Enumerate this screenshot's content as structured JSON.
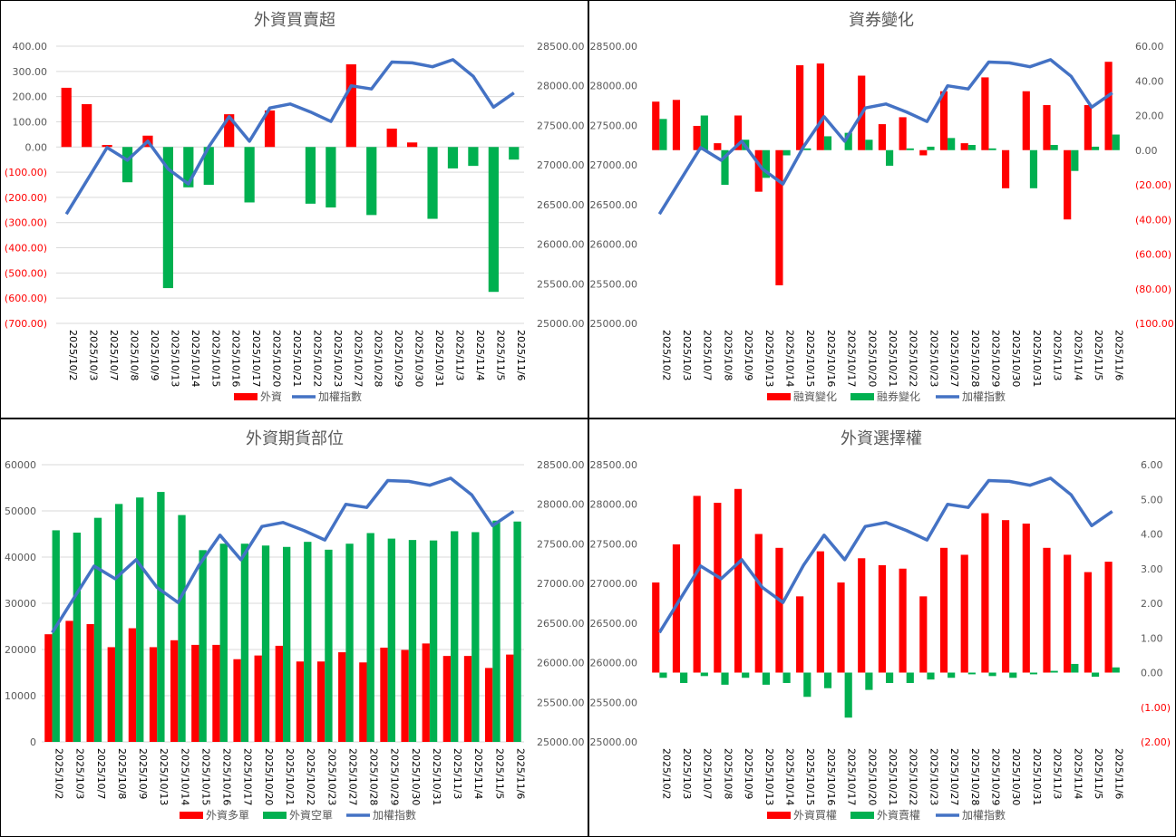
{
  "colors": {
    "red": "#ff0000",
    "green": "#00b050",
    "blue": "#4472c4",
    "grid": "#d9d9d9",
    "axis_text": "#595959",
    "negative_text": "#ff0000",
    "title_text": "#595959"
  },
  "dates": [
    "2025/10/2",
    "2025/10/3",
    "2025/10/7",
    "2025/10/8",
    "2025/10/9",
    "2025/10/13",
    "2025/10/14",
    "2025/10/15",
    "2025/10/16",
    "2025/10/17",
    "2025/10/20",
    "2025/10/21",
    "2025/10/22",
    "2025/10/23",
    "2025/10/27",
    "2025/10/28",
    "2025/10/29",
    "2025/10/30",
    "2025/10/31",
    "2025/11/3",
    "2025/11/4",
    "2025/11/5",
    "2025/11/6"
  ],
  "chart_data": [
    {
      "id": "foreign-net",
      "type": "bar",
      "title": "外資買賣超",
      "legend": "bottom",
      "grid": true,
      "left_axis": {
        "min": -700,
        "max": 400,
        "step": 100,
        "ticks": [
          "(700.00)",
          "(600.00)",
          "(500.00)",
          "(400.00)",
          "(300.00)",
          "(200.00)",
          "(100.00)",
          "0.00",
          "100.00",
          "200.00",
          "300.00",
          "400.00"
        ]
      },
      "right_axis": {
        "min": 25000,
        "max": 28500,
        "step": 500,
        "ticks": [
          "25000.00",
          "25500.00",
          "26000.00",
          "26500.00",
          "27000.00",
          "27500.00",
          "28000.00",
          "28500.00"
        ]
      },
      "series": [
        {
          "name": "外資",
          "kind": "bar",
          "axis": "left",
          "color_rule": "sign",
          "values": [
            235,
            170,
            8,
            -140,
            45,
            -560,
            -160,
            -150,
            130,
            -220,
            145,
            0,
            -225,
            -240,
            328,
            -270,
            73,
            18,
            -285,
            -85,
            -75,
            -575,
            -50
          ]
        },
        {
          "name": "加權指數",
          "kind": "line",
          "axis": "right",
          "color": "#4472c4",
          "values": [
            26380,
            26800,
            27220,
            27060,
            27300,
            26950,
            26760,
            27230,
            27610,
            27300,
            27720,
            27770,
            27670,
            27550,
            28000,
            27960,
            28300,
            28290,
            28240,
            28330,
            28120,
            27730,
            27910
          ]
        }
      ]
    },
    {
      "id": "margin-change",
      "type": "bar",
      "title": "資券變化",
      "legend": "bottom",
      "grid": false,
      "left_axis": {
        "min": 25000,
        "max": 28500,
        "step": 500,
        "ticks": [
          "25000.00",
          "25500.00",
          "26000.00",
          "26500.00",
          "27000.00",
          "27500.00",
          "28000.00",
          "28500.00"
        ]
      },
      "right_axis": {
        "min": -100,
        "max": 60,
        "step": 20,
        "ticks": [
          "(100.00)",
          "(80.00)",
          "(60.00)",
          "(40.00)",
          "(20.00)",
          "0.00",
          "20.00",
          "40.00",
          "60.00"
        ]
      },
      "series": [
        {
          "name": "融資變化",
          "kind": "bar",
          "axis": "right",
          "color": "#ff0000",
          "values": [
            28,
            29,
            14,
            4,
            20,
            -24,
            -78,
            49,
            50,
            0,
            43,
            15,
            19,
            -3,
            34,
            4,
            42,
            -22,
            34,
            26,
            -40,
            26,
            51
          ]
        },
        {
          "name": "融券變化",
          "kind": "bar",
          "axis": "right",
          "color": "#00b050",
          "values": [
            18,
            0,
            20,
            -20,
            6,
            -16,
            -3,
            1,
            8,
            10,
            6,
            -9,
            1,
            2,
            7,
            3,
            1,
            0,
            -22,
            3,
            -12,
            2,
            9
          ]
        },
        {
          "name": "加權指數",
          "kind": "line",
          "axis": "left",
          "color": "#4472c4",
          "values": [
            26380,
            26800,
            27220,
            27060,
            27300,
            26950,
            26760,
            27230,
            27610,
            27300,
            27720,
            27770,
            27670,
            27550,
            28000,
            27960,
            28300,
            28290,
            28240,
            28330,
            28120,
            27730,
            27910
          ]
        }
      ]
    },
    {
      "id": "foreign-futures",
      "type": "bar",
      "title": "外資期貨部位",
      "legend": "bottom",
      "grid": true,
      "left_axis": {
        "min": 0,
        "max": 60000,
        "step": 10000,
        "ticks": [
          "0",
          "10000",
          "20000",
          "30000",
          "40000",
          "50000",
          "60000"
        ]
      },
      "right_axis": {
        "min": 25000,
        "max": 28500,
        "step": 500,
        "ticks": [
          "25000.00",
          "25500.00",
          "26000.00",
          "26500.00",
          "27000.00",
          "27500.00",
          "28000.00",
          "28500.00"
        ]
      },
      "series": [
        {
          "name": "外資多單",
          "kind": "bar",
          "axis": "left",
          "color": "#ff0000",
          "values": [
            23300,
            26200,
            25500,
            20500,
            24600,
            20500,
            22000,
            21000,
            21000,
            17900,
            18700,
            20800,
            17400,
            17400,
            19400,
            17200,
            20400,
            19900,
            21300,
            18600,
            18600,
            16000,
            18900
          ]
        },
        {
          "name": "外資空單",
          "kind": "bar",
          "axis": "left",
          "color": "#00b050",
          "values": [
            45800,
            45300,
            48500,
            51500,
            52900,
            54100,
            49100,
            41500,
            42900,
            42900,
            42500,
            42200,
            43300,
            41600,
            42900,
            45200,
            44000,
            43700,
            43600,
            45600,
            45400,
            47900,
            47700
          ]
        },
        {
          "name": "加權指數",
          "kind": "line",
          "axis": "right",
          "color": "#4472c4",
          "values": [
            26380,
            26800,
            27220,
            27060,
            27300,
            26950,
            26760,
            27230,
            27610,
            27300,
            27720,
            27770,
            27670,
            27550,
            28000,
            27960,
            28300,
            28290,
            28240,
            28330,
            28120,
            27730,
            27910
          ]
        }
      ]
    },
    {
      "id": "foreign-options",
      "type": "bar",
      "title": "外資選擇權",
      "legend": "bottom",
      "grid": false,
      "left_axis": {
        "min": 25000,
        "max": 28500,
        "step": 500,
        "ticks": [
          "25000.00",
          "25500.00",
          "26000.00",
          "26500.00",
          "27000.00",
          "27500.00",
          "28000.00",
          "28500.00"
        ]
      },
      "right_axis": {
        "min": -2,
        "max": 6,
        "step": 1,
        "ticks": [
          "(2.00)",
          "(1.00)",
          "0.00",
          "1.00",
          "2.00",
          "3.00",
          "4.00",
          "5.00",
          "6.00"
        ]
      },
      "series": [
        {
          "name": "外資買權",
          "kind": "bar",
          "axis": "right",
          "color": "#ff0000",
          "values": [
            2.6,
            3.7,
            5.1,
            4.9,
            5.3,
            4.0,
            3.6,
            2.2,
            3.5,
            2.6,
            3.3,
            3.1,
            3.0,
            2.2,
            3.6,
            3.4,
            4.6,
            4.4,
            4.3,
            3.6,
            3.4,
            2.9,
            3.2
          ]
        },
        {
          "name": "外資賣權",
          "kind": "bar",
          "axis": "right",
          "color": "#00b050",
          "values": [
            -0.15,
            -0.3,
            -0.1,
            -0.35,
            -0.15,
            -0.35,
            -0.3,
            -0.7,
            -0.45,
            -1.3,
            -0.5,
            -0.3,
            -0.3,
            -0.2,
            -0.15,
            -0.05,
            -0.1,
            -0.15,
            -0.05,
            0.05,
            0.25,
            -0.12,
            0.15
          ]
        },
        {
          "name": "加權指數",
          "kind": "line",
          "axis": "left",
          "color": "#4472c4",
          "values": [
            26380,
            26800,
            27220,
            27060,
            27300,
            26950,
            26760,
            27230,
            27610,
            27300,
            27720,
            27770,
            27670,
            27550,
            28000,
            27960,
            28300,
            28290,
            28240,
            28330,
            28120,
            27730,
            27910
          ]
        }
      ]
    }
  ]
}
